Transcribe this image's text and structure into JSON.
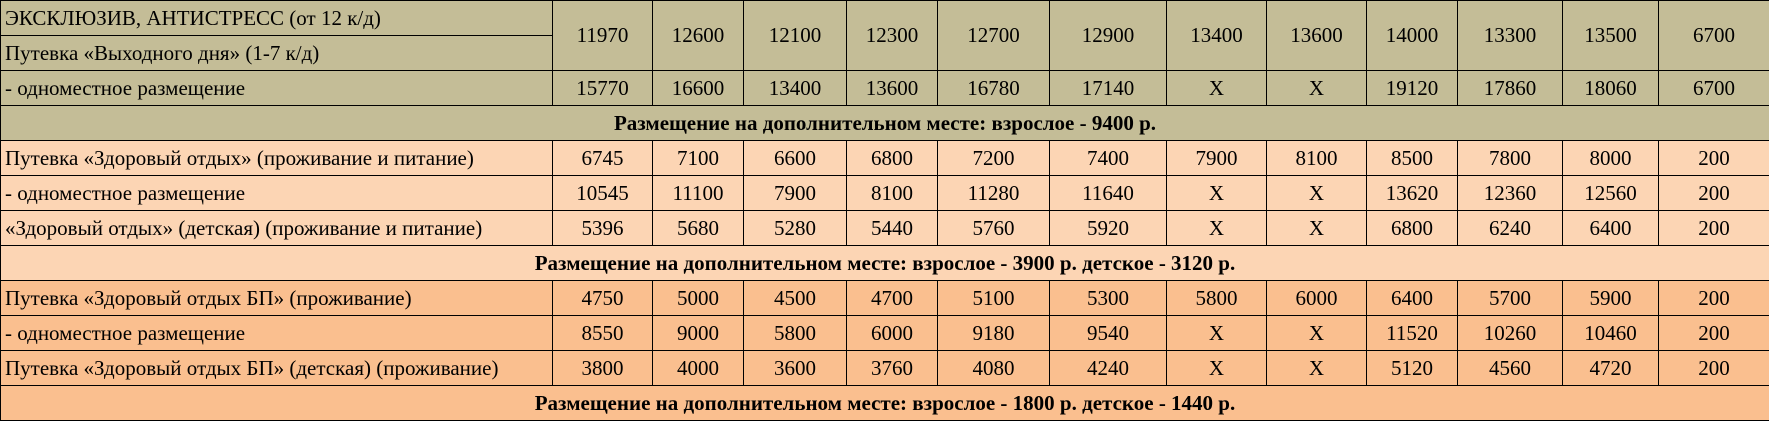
{
  "colors": {
    "section1": "#c4bd97",
    "section2": "#fcd5b4",
    "section3": "#fabf8f"
  },
  "header": {
    "label_top": "ЭКСКЛЮЗИВ, АНТИСТРЕСС (от 12 к/д)",
    "label_bottom": "Путевка «Выходного дня» (1-7 к/д)",
    "values": [
      "11970",
      "12600",
      "12100",
      "12300",
      "12700",
      "12900",
      "13400",
      "13600",
      "14000",
      "13300",
      "13500",
      "6700"
    ]
  },
  "sections": [
    {
      "rows": [
        {
          "label": "- одноместное размещение",
          "values": [
            "15770",
            "16600",
            "13400",
            "13600",
            "16780",
            "17140",
            "X",
            "X",
            "19120",
            "17860",
            "18060",
            "6700"
          ]
        }
      ],
      "note": "Размещение на дополнительном месте: взрослое - 9400 р."
    },
    {
      "rows": [
        {
          "label": "Путевка «Здоровый отдых» (проживание и питание)",
          "values": [
            "6745",
            "7100",
            "6600",
            "6800",
            "7200",
            "7400",
            "7900",
            "8100",
            "8500",
            "7800",
            "8000",
            "200"
          ]
        },
        {
          "label": "- одноместное размещение",
          "values": [
            "10545",
            "11100",
            "7900",
            "8100",
            "11280",
            "11640",
            "X",
            "X",
            "13620",
            "12360",
            "12560",
            "200"
          ]
        },
        {
          "label": "«Здоровый отдых» (детская) (проживание и питание)",
          "values": [
            "5396",
            "5680",
            "5280",
            "5440",
            "5760",
            "5920",
            "X",
            "X",
            "6800",
            "6240",
            "6400",
            "200"
          ]
        }
      ],
      "note": "Размещение на дополнительном месте: взрослое - 3900 р. детское - 3120 р."
    },
    {
      "rows": [
        {
          "label": "Путевка «Здоровый отдых БП» (проживание)",
          "values": [
            "4750",
            "5000",
            "4500",
            "4700",
            "5100",
            "5300",
            "5800",
            "6000",
            "6400",
            "5700",
            "5900",
            "200"
          ]
        },
        {
          "label": "- одноместное размещение",
          "values": [
            "8550",
            "9000",
            "5800",
            "6000",
            "9180",
            "9540",
            "X",
            "X",
            "11520",
            "10260",
            "10460",
            "200"
          ]
        },
        {
          "label": "Путевка «Здоровый отдых БП» (детская) (проживание)",
          "values": [
            "3800",
            "4000",
            "3600",
            "3760",
            "4080",
            "4240",
            "X",
            "X",
            "5120",
            "4560",
            "4720",
            "200"
          ]
        }
      ],
      "note": "Размещение на дополнительном месте: взрослое - 1800 р. детское - 1440 р."
    }
  ]
}
